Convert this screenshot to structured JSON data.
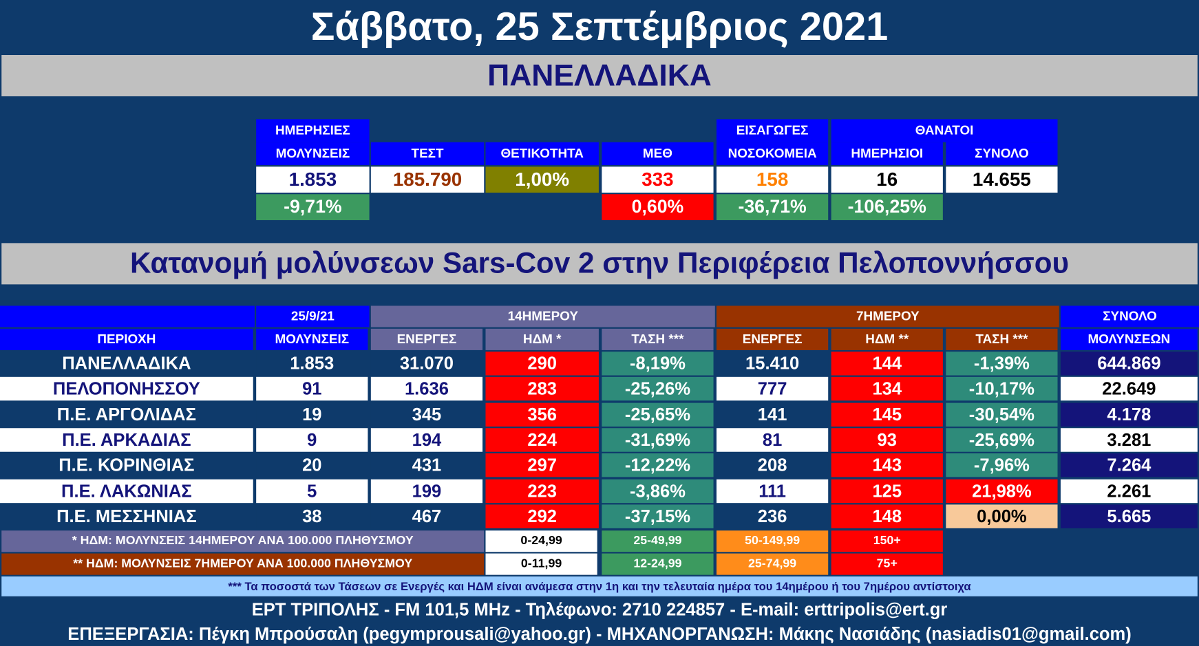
{
  "title": "Σάββατο, 25 Σεπτέμβριος 2021",
  "national_title": "ΠΑΝΕΛΛΑΔΙΚΑ",
  "summary": {
    "headers": {
      "infections": [
        "ΗΜΕΡΗΣΙΕΣ",
        "ΜΟΛΥΝΣΕΙΣ"
      ],
      "tests": "ΤΕΣΤ",
      "positivity": "ΘΕΤΙΚΟΤΗΤΑ",
      "icu": "ΜΕΘ",
      "admissions": [
        "ΕΙΣΑΓΩΓΕΣ",
        "ΝΟΣΟΚΟΜΕΙΑ"
      ],
      "deaths": "ΘΑΝΑΤΟΙ",
      "deaths_daily": "ΗΜΕΡΗΣΙΟΙ",
      "deaths_total": "ΣΥΝΟΛΟ"
    },
    "values": [
      "1.853",
      "185.790",
      "1,00%",
      "333",
      "158",
      "16",
      "14.655"
    ],
    "changes": {
      "infections": "-9,71%",
      "icu": "0,60%",
      "admissions": "-36,71%",
      "deaths_daily": "-106,25%"
    }
  },
  "region_table": {
    "title": "Κατανομή μολύνσεων Sars-Cov 2 στην Περιφέρεια Πελοποννήσσου",
    "group_headers": {
      "date": "25/9/21",
      "fourteen_day": "14ΗΜΕΡΟΥ",
      "seven_day": "7ΗΜΕΡΟΥ",
      "total": "ΣΥΝΟΛΟ"
    },
    "columns": [
      "ΠΕΡΙΟΧΗ",
      "ΜΟΛΥΝΣΕΙΣ",
      "ΕΝΕΡΓΕΣ",
      "ΗΔΜ *",
      "ΤΑΣΗ ***",
      "ΕΝΕΡΓΕΣ",
      "ΗΔΜ **",
      "ΤΑΣΗ ***",
      "ΜΟΛΥΝΣΕΩΝ"
    ],
    "rows": [
      [
        "ΠΑΝΕΛΛΑΔΙΚΑ",
        "1.853",
        "31.070",
        "290",
        "-8,19%",
        "15.410",
        "144",
        "-1,39%",
        "644.869"
      ],
      [
        "ΠΕΛΟΠΟΝΗΣΣΟΥ",
        "91",
        "1.636",
        "283",
        "-25,26%",
        "777",
        "134",
        "-10,17%",
        "22.649"
      ],
      [
        "Π.Ε. ΑΡΓΟΛΙΔΑΣ",
        "19",
        "345",
        "356",
        "-25,65%",
        "141",
        "145",
        "-30,54%",
        "4.178"
      ],
      [
        "Π.Ε. ΑΡΚΑΔΙΑΣ",
        "9",
        "194",
        "224",
        "-31,69%",
        "81",
        "93",
        "-25,69%",
        "3.281"
      ],
      [
        "Π.Ε. ΚΟΡΙΝΘΙΑΣ",
        "20",
        "431",
        "297",
        "-12,22%",
        "208",
        "143",
        "-7,96%",
        "7.264"
      ],
      [
        "Π.Ε. ΛΑΚΩΝΙΑΣ",
        "5",
        "199",
        "223",
        "-3,86%",
        "111",
        "125",
        "21,98%",
        "2.261"
      ],
      [
        "Π.Ε. ΜΕΣΣΗΝΙΑΣ",
        "38",
        "467",
        "292",
        "-37,15%",
        "236",
        "148",
        "0,00%",
        "5.665"
      ]
    ]
  },
  "legend": [
    {
      "label": "* ΗΔΜ: ΜΟΛΥΝΣΕΙΣ 14ΗΜΕΡΟΥ ΑΝΑ 100.000 ΠΛΗΘΥΣΜΟΥ",
      "ranges": [
        "0-24,99",
        "25-49,99",
        "50-149,99",
        "150+"
      ]
    },
    {
      "label": "** ΗΔΜ: ΜΟΛΥΝΣΕΙΣ 7ΗΜΕΡΟΥ ΑΝΑ 100.000 ΠΛΗΘΥΣΜΟΥ",
      "ranges": [
        "0-11,99",
        "12-24,99",
        "25-74,99",
        "75+"
      ]
    }
  ],
  "note": "*** Τα ποσοστά των Τάσεων σε Ενεργές και ΗΔΜ είναι ανάμεσα στην 1η και την τελευταία ημέρα του 14ημέρου ή του 7ημέρου αντίστοιχα",
  "footer": [
    "ΕΡΤ ΤΡΙΠΟΛΗΣ - FM 101,5 MHz - Τηλέφωνο:  2710 224857 - E-mail: erttripolis@ert.gr",
    "ΕΠΕΞΕΡΓΑΣΙΑ: Πέγκη Μπρούσαλη (pegymprousali@yahoo.gr) - ΜΗΧΑΝΟΡΓΑΝΩΣΗ: Μάκης Νασιάδης (nasiadis01@gmail.com)"
  ]
}
